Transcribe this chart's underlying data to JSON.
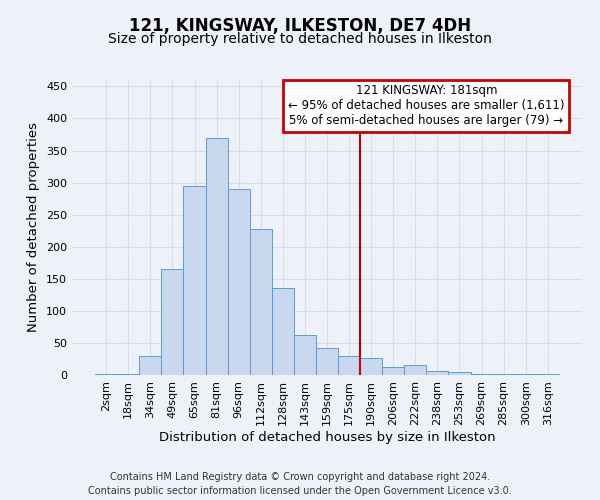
{
  "title": "121, KINGSWAY, ILKESTON, DE7 4DH",
  "subtitle": "Size of property relative to detached houses in Ilkeston",
  "xlabel": "Distribution of detached houses by size in Ilkeston",
  "ylabel": "Number of detached properties",
  "bar_labels": [
    "2sqm",
    "18sqm",
    "34sqm",
    "49sqm",
    "65sqm",
    "81sqm",
    "96sqm",
    "112sqm",
    "128sqm",
    "143sqm",
    "159sqm",
    "175sqm",
    "190sqm",
    "206sqm",
    "222sqm",
    "238sqm",
    "253sqm",
    "269sqm",
    "285sqm",
    "300sqm",
    "316sqm"
  ],
  "bar_heights": [
    2,
    2,
    29,
    166,
    295,
    370,
    290,
    227,
    135,
    62,
    42,
    30,
    26,
    13,
    15,
    7,
    4,
    2,
    1,
    1,
    1
  ],
  "bar_color": "#c8d8ee",
  "bar_edge_color": "#5b9bd5",
  "vline_x": 11.5,
  "vline_color": "#cc0000",
  "ylim": [
    0,
    460
  ],
  "yticks": [
    0,
    50,
    100,
    150,
    200,
    250,
    300,
    350,
    400,
    450
  ],
  "annotation_title": "121 KINGSWAY: 181sqm",
  "annotation_line1": "← 95% of detached houses are smaller (1,611)",
  "annotation_line2": "5% of semi-detached houses are larger (79) →",
  "annotation_box_color": "#cc0000",
  "footer_line1": "Contains HM Land Registry data © Crown copyright and database right 2024.",
  "footer_line2": "Contains public sector information licensed under the Open Government Licence v3.0.",
  "bg_color": "#eef2f8",
  "grid_color": "#d8dce8",
  "title_fontsize": 12,
  "subtitle_fontsize": 10,
  "axis_label_fontsize": 9.5,
  "tick_fontsize": 8,
  "footer_fontsize": 7,
  "annotation_fontsize": 8.5
}
